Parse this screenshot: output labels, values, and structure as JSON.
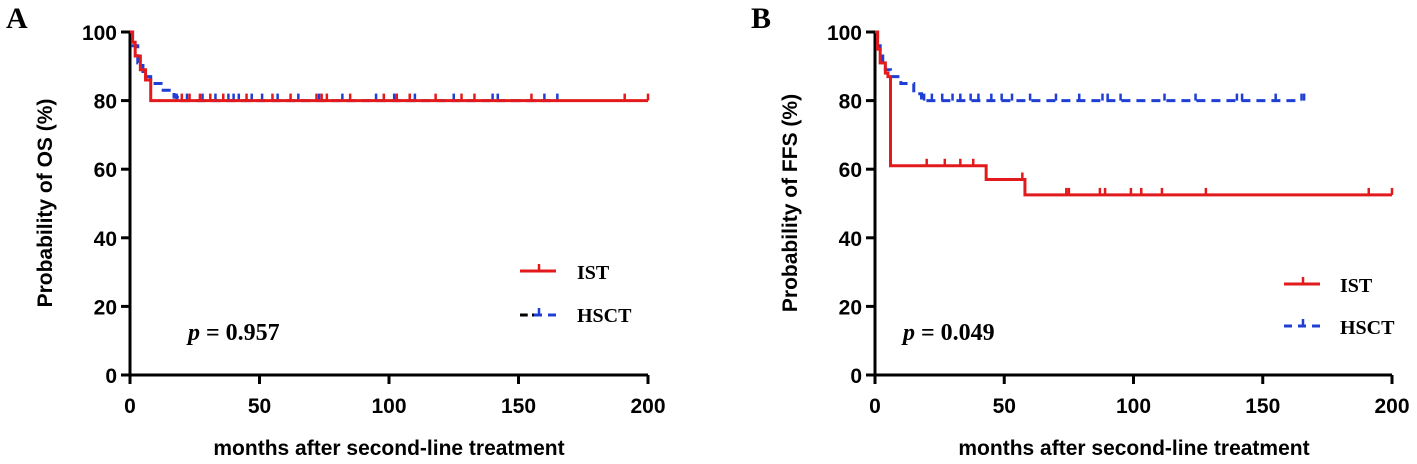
{
  "chart_data": [
    {
      "type": "line",
      "panel_label": "A",
      "title": "",
      "xlabel": "months after second-line treatment",
      "ylabel": "Probability of OS (%)",
      "xlim": [
        0,
        200
      ],
      "ylim": [
        0,
        100
      ],
      "x_ticks": [
        "0",
        "50",
        "100",
        "150",
        "200"
      ],
      "y_ticks": [
        "0",
        "20",
        "40",
        "60",
        "80",
        "100"
      ],
      "p_prefix": "p",
      "p_value": "= 0.957",
      "legend_position": "bottom-right",
      "series": [
        {
          "name": "IST",
          "color": "#e31a1c",
          "style": "solid",
          "steps": [
            [
              0,
              100
            ],
            [
              1,
              97
            ],
            [
              2,
              93
            ],
            [
              4,
              89
            ],
            [
              6,
              86
            ],
            [
              8,
              80
            ],
            [
              200,
              80
            ]
          ],
          "censors": [
            [
              20,
              80
            ],
            [
              23,
              80
            ],
            [
              27,
              80
            ],
            [
              31,
              80
            ],
            [
              36,
              80
            ],
            [
              45,
              80
            ],
            [
              55,
              80
            ],
            [
              62,
              80
            ],
            [
              72,
              80
            ],
            [
              74,
              80
            ],
            [
              76,
              80
            ],
            [
              85,
              80
            ],
            [
              98,
              80
            ],
            [
              103,
              80
            ],
            [
              108,
              80
            ],
            [
              118,
              80
            ],
            [
              128,
              80
            ],
            [
              133,
              80
            ],
            [
              155,
              80
            ],
            [
              191,
              80
            ],
            [
              200,
              80
            ]
          ]
        },
        {
          "name": "HSCT",
          "color": "#1f3fd4",
          "style": "dashed",
          "steps": [
            [
              0,
              100
            ],
            [
              1,
              96
            ],
            [
              3,
              91
            ],
            [
              5,
              87
            ],
            [
              8,
              85
            ],
            [
              12,
              83
            ],
            [
              17,
              81
            ],
            [
              19,
              80
            ],
            [
              165,
              80
            ]
          ],
          "censors": [
            [
              18,
              80
            ],
            [
              22,
              80
            ],
            [
              28,
              80
            ],
            [
              33,
              80
            ],
            [
              38,
              80
            ],
            [
              40,
              80
            ],
            [
              42,
              80
            ],
            [
              47,
              80
            ],
            [
              51,
              80
            ],
            [
              57,
              80
            ],
            [
              65,
              80
            ],
            [
              73,
              80
            ],
            [
              82,
              80
            ],
            [
              95,
              80
            ],
            [
              102,
              80
            ],
            [
              110,
              80
            ],
            [
              125,
              80
            ],
            [
              140,
              80
            ],
            [
              142,
              80
            ],
            [
              160,
              80
            ],
            [
              165,
              80
            ]
          ]
        }
      ]
    },
    {
      "type": "line",
      "panel_label": "B",
      "title": "",
      "xlabel": "months after second-line treatment",
      "ylabel": "Probability of FFS (%)",
      "xlim": [
        0,
        200
      ],
      "ylim": [
        0,
        100
      ],
      "x_ticks": [
        "0",
        "50",
        "100",
        "150",
        "200"
      ],
      "y_ticks": [
        "0",
        "20",
        "40",
        "60",
        "80",
        "100"
      ],
      "p_prefix": "p",
      "p_value": "= 0.049",
      "legend_position": "bottom-right",
      "series": [
        {
          "name": "IST",
          "color": "#e31a1c",
          "style": "solid",
          "steps": [
            [
              0,
              100
            ],
            [
              1,
              95
            ],
            [
              2,
              91
            ],
            [
              4,
              88
            ],
            [
              5,
              87
            ],
            [
              6,
              61
            ],
            [
              43,
              61
            ],
            [
              43,
              57
            ],
            [
              58,
              57
            ],
            [
              58,
              52.5
            ],
            [
              200,
              52.5
            ]
          ],
          "censors": [
            [
              20,
              61
            ],
            [
              27,
              61
            ],
            [
              33,
              61
            ],
            [
              38,
              61
            ],
            [
              57,
              57
            ],
            [
              74,
              52.5
            ],
            [
              75,
              52.5
            ],
            [
              87,
              52.5
            ],
            [
              89,
              52.5
            ],
            [
              99,
              52.5
            ],
            [
              103,
              52.5
            ],
            [
              111,
              52.5
            ],
            [
              128,
              52.5
            ],
            [
              191,
              52.5
            ],
            [
              200,
              52.5
            ]
          ]
        },
        {
          "name": "HSCT",
          "color": "#1f3fd4",
          "style": "dashed",
          "steps": [
            [
              0,
              100
            ],
            [
              1,
              96
            ],
            [
              2,
              93
            ],
            [
              3,
              91
            ],
            [
              4,
              89
            ],
            [
              6,
              87
            ],
            [
              10,
              85
            ],
            [
              15,
              82
            ],
            [
              18,
              80
            ],
            [
              165,
              80
            ]
          ],
          "censors": [
            [
              19,
              80
            ],
            [
              22,
              80
            ],
            [
              26,
              80
            ],
            [
              30,
              80
            ],
            [
              33,
              80
            ],
            [
              37,
              80
            ],
            [
              40,
              80
            ],
            [
              45,
              80
            ],
            [
              49,
              80
            ],
            [
              53,
              80
            ],
            [
              60,
              80
            ],
            [
              70,
              80
            ],
            [
              79,
              80
            ],
            [
              88,
              80
            ],
            [
              90,
              80
            ],
            [
              95,
              80
            ],
            [
              112,
              80
            ],
            [
              124,
              80
            ],
            [
              140,
              80
            ],
            [
              142,
              80
            ],
            [
              155,
              80
            ],
            [
              165,
              80
            ],
            [
              166,
              80
            ]
          ]
        }
      ]
    }
  ]
}
